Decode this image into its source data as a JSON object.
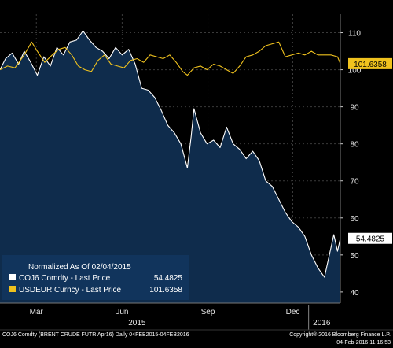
{
  "chart_data": {
    "type": "area",
    "normalized_label": "Normalized As Of 02/04/2015",
    "yticks": [
      40,
      50,
      60,
      70,
      80,
      90,
      100,
      110
    ],
    "ylim": [
      37,
      115
    ],
    "xlim": [
      "2015-02-04",
      "2016-02-04"
    ],
    "month_ticks": [
      {
        "label": "Mar",
        "date": "2015-03-15"
      },
      {
        "label": "Jun",
        "date": "2015-06-15"
      },
      {
        "label": "Sep",
        "date": "2015-09-15"
      },
      {
        "label": "Dec",
        "date": "2015-12-15"
      }
    ],
    "year_ticks": [
      {
        "label": "2015",
        "date": "2015-07-01"
      },
      {
        "label": "2016",
        "date": "2016-01-15"
      }
    ],
    "series": [
      {
        "name": "COJ6 Comdty - Last Price",
        "last_value": "54.4825",
        "color": "#ffffff",
        "fill": "#0f2c4c",
        "points": [
          [
            "2015-02-04",
            100
          ],
          [
            "2015-02-10",
            103
          ],
          [
            "2015-02-17",
            104.5
          ],
          [
            "2015-02-24",
            101.5
          ],
          [
            "2015-03-02",
            105
          ],
          [
            "2015-03-09",
            102
          ],
          [
            "2015-03-16",
            98.5
          ],
          [
            "2015-03-23",
            103.5
          ],
          [
            "2015-03-30",
            101
          ],
          [
            "2015-04-06",
            106
          ],
          [
            "2015-04-13",
            104
          ],
          [
            "2015-04-20",
            107.5
          ],
          [
            "2015-04-27",
            108
          ],
          [
            "2015-05-04",
            110.5
          ],
          [
            "2015-05-11",
            108
          ],
          [
            "2015-05-18",
            106
          ],
          [
            "2015-05-25",
            105
          ],
          [
            "2015-06-01",
            103
          ],
          [
            "2015-06-08",
            106
          ],
          [
            "2015-06-15",
            104
          ],
          [
            "2015-06-22",
            105.5
          ],
          [
            "2015-06-29",
            101.5
          ],
          [
            "2015-07-06",
            95
          ],
          [
            "2015-07-13",
            94.5
          ],
          [
            "2015-07-20",
            92.5
          ],
          [
            "2015-07-27",
            89
          ],
          [
            "2015-08-03",
            85
          ],
          [
            "2015-08-10",
            83
          ],
          [
            "2015-08-17",
            80
          ],
          [
            "2015-08-24",
            73.5
          ],
          [
            "2015-08-28",
            82
          ],
          [
            "2015-08-31",
            89.5
          ],
          [
            "2015-09-07",
            83
          ],
          [
            "2015-09-14",
            80
          ],
          [
            "2015-09-21",
            81
          ],
          [
            "2015-09-28",
            79
          ],
          [
            "2015-10-05",
            84.5
          ],
          [
            "2015-10-12",
            80
          ],
          [
            "2015-10-19",
            78.5
          ],
          [
            "2015-10-26",
            76
          ],
          [
            "2015-11-02",
            78
          ],
          [
            "2015-11-09",
            75.5
          ],
          [
            "2015-11-16",
            70
          ],
          [
            "2015-11-23",
            68.5
          ],
          [
            "2015-11-30",
            65
          ],
          [
            "2015-12-07",
            61.5
          ],
          [
            "2015-12-14",
            59
          ],
          [
            "2015-12-21",
            57.5
          ],
          [
            "2015-12-28",
            55
          ],
          [
            "2016-01-04",
            50
          ],
          [
            "2016-01-11",
            46.5
          ],
          [
            "2016-01-18",
            44
          ],
          [
            "2016-01-25",
            52
          ],
          [
            "2016-01-28",
            55.5
          ],
          [
            "2016-02-01",
            51
          ],
          [
            "2016-02-04",
            54.4825
          ]
        ]
      },
      {
        "name": "USDEUR Curncy - Last Price",
        "last_value": "101.6358",
        "color": "#f0c21e",
        "fill": "none",
        "points": [
          [
            "2015-02-04",
            100
          ],
          [
            "2015-02-12",
            101
          ],
          [
            "2015-02-20",
            100.5
          ],
          [
            "2015-03-02",
            104
          ],
          [
            "2015-03-10",
            107.5
          ],
          [
            "2015-03-16",
            105
          ],
          [
            "2015-03-24",
            102
          ],
          [
            "2015-04-01",
            104
          ],
          [
            "2015-04-08",
            105.5
          ],
          [
            "2015-04-15",
            106
          ],
          [
            "2015-04-22",
            104
          ],
          [
            "2015-04-29",
            101
          ],
          [
            "2015-05-06",
            100
          ],
          [
            "2015-05-13",
            99.5
          ],
          [
            "2015-05-20",
            102.5
          ],
          [
            "2015-05-27",
            104
          ],
          [
            "2015-06-03",
            101.5
          ],
          [
            "2015-06-10",
            101
          ],
          [
            "2015-06-17",
            100.5
          ],
          [
            "2015-06-24",
            102.5
          ],
          [
            "2015-07-01",
            103
          ],
          [
            "2015-07-08",
            102
          ],
          [
            "2015-07-15",
            104
          ],
          [
            "2015-07-22",
            103.5
          ],
          [
            "2015-07-29",
            103
          ],
          [
            "2015-08-05",
            104
          ],
          [
            "2015-08-12",
            102
          ],
          [
            "2015-08-19",
            99.5
          ],
          [
            "2015-08-24",
            98.5
          ],
          [
            "2015-08-31",
            100.5
          ],
          [
            "2015-09-07",
            101
          ],
          [
            "2015-09-14",
            100
          ],
          [
            "2015-09-21",
            101.5
          ],
          [
            "2015-09-28",
            101
          ],
          [
            "2015-10-05",
            100
          ],
          [
            "2015-10-12",
            99
          ],
          [
            "2015-10-19",
            101
          ],
          [
            "2015-10-26",
            103.5
          ],
          [
            "2015-11-02",
            104
          ],
          [
            "2015-11-09",
            105
          ],
          [
            "2015-11-16",
            106.5
          ],
          [
            "2015-11-23",
            107
          ],
          [
            "2015-11-30",
            107.5
          ],
          [
            "2015-12-07",
            103.5
          ],
          [
            "2015-12-14",
            104
          ],
          [
            "2015-12-21",
            104.5
          ],
          [
            "2015-12-28",
            104
          ],
          [
            "2016-01-04",
            105
          ],
          [
            "2016-01-11",
            104
          ],
          [
            "2016-01-18",
            104
          ],
          [
            "2016-01-25",
            104
          ],
          [
            "2016-02-01",
            103.5
          ],
          [
            "2016-02-04",
            101.6358
          ]
        ]
      }
    ]
  },
  "footer": {
    "left": "COJ6 Comdty (BRENT CRUDE FUTR  Apr16)  Daily 04FEB2015-04FEB2016",
    "right_line1": "Copyright® 2016 Bloomberg Finance L.P.",
    "right_line2": "04-Feb-2016 11:16:53"
  }
}
